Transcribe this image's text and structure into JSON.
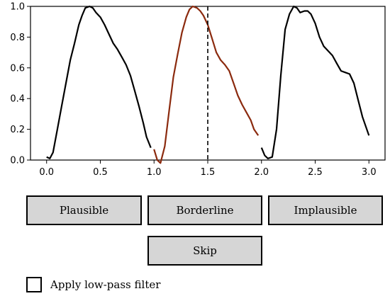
{
  "chart_data": {
    "type": "line",
    "xlim": [
      -0.15,
      3.15
    ],
    "ylim": [
      0.0,
      1.0
    ],
    "x_ticks": [
      "0.0",
      "0.5",
      "1.0",
      "1.5",
      "2.0",
      "2.5",
      "3.0"
    ],
    "y_ticks": [
      "0.0",
      "0.2",
      "0.4",
      "0.6",
      "0.8",
      "1.0"
    ],
    "grid": false,
    "vline": {
      "x": 1.5,
      "style": "dashed",
      "color": "#000000"
    },
    "series": [
      {
        "color": "#000000",
        "x": [
          0.0,
          0.03,
          0.06,
          0.1,
          0.14,
          0.18,
          0.22,
          0.26,
          0.3,
          0.33,
          0.36,
          0.4,
          0.43,
          0.46,
          0.5,
          0.54,
          0.58,
          0.62,
          0.66,
          0.7,
          0.74,
          0.78,
          0.82,
          0.86,
          0.9,
          0.93,
          0.97
        ],
        "y": [
          0.02,
          0.01,
          0.05,
          0.2,
          0.35,
          0.5,
          0.65,
          0.76,
          0.88,
          0.94,
          0.99,
          1.0,
          0.99,
          0.96,
          0.93,
          0.88,
          0.82,
          0.76,
          0.72,
          0.67,
          0.62,
          0.55,
          0.45,
          0.35,
          0.24,
          0.15,
          0.08
        ]
      },
      {
        "color": "#8b2a0e",
        "x": [
          1.0,
          1.03,
          1.06,
          1.1,
          1.14,
          1.18,
          1.22,
          1.26,
          1.3,
          1.33,
          1.36,
          1.4,
          1.43,
          1.46,
          1.5,
          1.54,
          1.58,
          1.62,
          1.66,
          1.7,
          1.74,
          1.78,
          1.82,
          1.86,
          1.9,
          1.93,
          1.97
        ],
        "y": [
          0.07,
          0.0,
          -0.02,
          0.09,
          0.32,
          0.54,
          0.69,
          0.83,
          0.93,
          0.98,
          1.0,
          0.99,
          0.97,
          0.94,
          0.88,
          0.79,
          0.7,
          0.65,
          0.62,
          0.58,
          0.5,
          0.42,
          0.36,
          0.31,
          0.26,
          0.2,
          0.16
        ]
      },
      {
        "color": "#000000",
        "x": [
          2.0,
          2.03,
          2.06,
          2.1,
          2.14,
          2.18,
          2.22,
          2.26,
          2.3,
          2.33,
          2.36,
          2.4,
          2.43,
          2.46,
          2.5,
          2.54,
          2.58,
          2.62,
          2.66,
          2.7,
          2.74,
          2.78,
          2.82,
          2.86,
          2.9,
          2.94,
          3.0
        ],
        "y": [
          0.08,
          0.03,
          0.01,
          0.02,
          0.2,
          0.55,
          0.85,
          0.95,
          1.0,
          0.99,
          0.96,
          0.97,
          0.97,
          0.95,
          0.89,
          0.8,
          0.74,
          0.71,
          0.68,
          0.63,
          0.58,
          0.57,
          0.56,
          0.5,
          0.39,
          0.28,
          0.16
        ]
      }
    ]
  },
  "buttons": {
    "plausible": "Plausible",
    "borderline": "Borderline",
    "implausible": "Implausible",
    "skip": "Skip"
  },
  "filter": {
    "label": "Apply low-pass filter",
    "checked": false
  }
}
